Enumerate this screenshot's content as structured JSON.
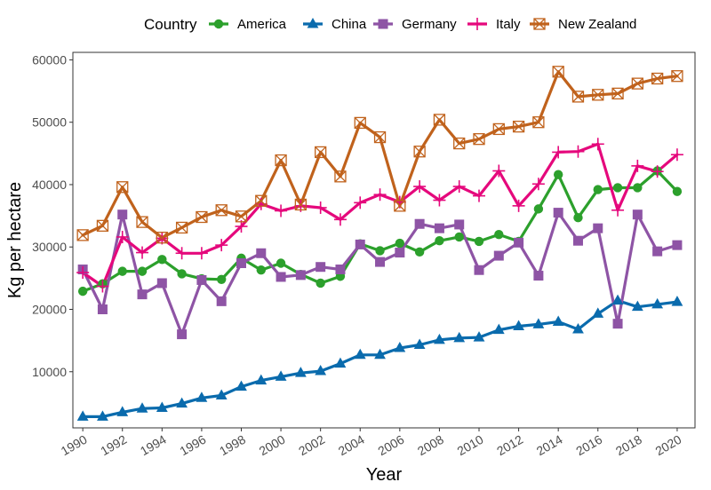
{
  "chart_data": {
    "type": "line",
    "xlabel": "Year",
    "ylabel": "Kg per hectare",
    "xlim": [
      1989.5,
      2020.9
    ],
    "ylim": [
      1000,
      61200
    ],
    "x": [
      1990,
      1991,
      1992,
      1993,
      1994,
      1995,
      1996,
      1997,
      1998,
      1999,
      2000,
      2001,
      2002,
      2003,
      2004,
      2005,
      2006,
      2007,
      2008,
      2009,
      2010,
      2011,
      2012,
      2013,
      2014,
      2015,
      2016,
      2017,
      2018,
      2019,
      2020
    ],
    "x_ticks": [
      1990,
      1992,
      1994,
      1996,
      1998,
      2000,
      2002,
      2004,
      2006,
      2008,
      2010,
      2012,
      2014,
      2016,
      2018,
      2020
    ],
    "x_tick_labels": [
      "1990",
      "1992",
      "1994",
      "1996",
      "1998",
      "2000",
      "2002",
      "2004",
      "2006",
      "2008",
      "2010",
      "2012",
      "2014",
      "2016",
      "2018",
      "2020"
    ],
    "y_ticks": [
      10000,
      20000,
      30000,
      40000,
      50000,
      60000
    ],
    "y_tick_labels": [
      "10000",
      "20000",
      "30000",
      "40000",
      "50000",
      "60000"
    ],
    "grid": false,
    "legend": {
      "title": "Country",
      "position": "top"
    },
    "series": [
      {
        "name": "America",
        "color": "#2ca02c",
        "marker": "circle",
        "values": [
          22900,
          24100,
          26100,
          26100,
          28000,
          25700,
          24900,
          24800,
          28200,
          26300,
          27400,
          25600,
          24200,
          25300,
          30500,
          29400,
          30600,
          29200,
          31000,
          31600,
          30900,
          32000,
          30900,
          36100,
          41600,
          34700,
          39200,
          39500,
          39500,
          42200,
          38900
        ]
      },
      {
        "name": "China",
        "color": "#0a6bad",
        "marker": "triangle",
        "values": [
          2800,
          2800,
          3500,
          4100,
          4200,
          4900,
          5800,
          6200,
          7600,
          8600,
          9200,
          9800,
          10100,
          11300,
          12700,
          12700,
          13800,
          14300,
          15100,
          15400,
          15500,
          16700,
          17300,
          17600,
          18000,
          16800,
          19300,
          21400,
          20400,
          20800,
          21200
        ]
      },
      {
        "name": "Germany",
        "color": "#8e54a5",
        "marker": "square",
        "values": [
          26400,
          20000,
          35200,
          22400,
          24200,
          16000,
          24700,
          21300,
          27400,
          29000,
          25200,
          25500,
          26800,
          26400,
          30400,
          27600,
          29100,
          33700,
          33000,
          33600,
          26300,
          28600,
          30700,
          25400,
          35500,
          31000,
          33000,
          17700,
          35200,
          29300,
          30300
        ]
      },
      {
        "name": "Italy",
        "color": "#e5087c",
        "marker": "plus",
        "values": [
          25900,
          23700,
          31600,
          29100,
          31400,
          29000,
          29000,
          30300,
          33300,
          36900,
          35800,
          36600,
          36300,
          34400,
          37100,
          38400,
          37200,
          39700,
          37500,
          39700,
          38200,
          42200,
          36600,
          40100,
          45200,
          45300,
          46500,
          35900,
          43000,
          42100,
          44800
        ]
      },
      {
        "name": "New Zealand",
        "color": "#c0621c",
        "marker": "square-x",
        "values": [
          31900,
          33400,
          39600,
          34000,
          31500,
          33100,
          34800,
          35900,
          34900,
          37400,
          43900,
          36800,
          45200,
          41300,
          49900,
          47600,
          36600,
          45300,
          50400,
          46600,
          47300,
          48900,
          49300,
          50000,
          58100,
          54100,
          54400,
          54600,
          56200,
          57000,
          57400
        ]
      }
    ]
  }
}
